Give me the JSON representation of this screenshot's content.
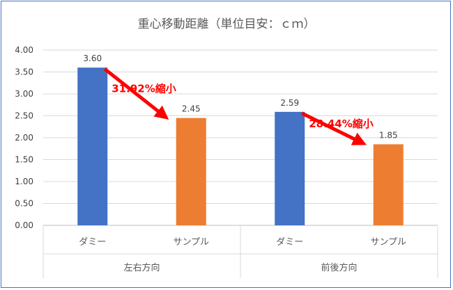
{
  "chart_data": {
    "type": "bar",
    "title": "重心移動距離（単位目安：ｃｍ）",
    "groups": [
      {
        "label": "左右方向",
        "categories": [
          "ダミー",
          "サンプル"
        ],
        "values": [
          3.6,
          2.45
        ],
        "value_labels": [
          "3.60",
          "2.45"
        ]
      },
      {
        "label": "前後方向",
        "categories": [
          "ダミー",
          "サンプル"
        ],
        "values": [
          2.59,
          1.85
        ],
        "value_labels": [
          "2.59",
          "1.85"
        ]
      }
    ],
    "series_colors": [
      "#4472c4",
      "#ed7d31"
    ],
    "ylim": [
      0,
      4
    ],
    "yticks": [
      "0.00",
      "0.50",
      "1.00",
      "1.50",
      "2.00",
      "2.50",
      "3.00",
      "3.50",
      "4.00"
    ],
    "grid": true,
    "annotations": [
      {
        "text": "31.92%縮小",
        "color": "#ff0000",
        "group": 0
      },
      {
        "text": "28.44%縮小",
        "color": "#ff0000",
        "group": 1
      }
    ]
  }
}
